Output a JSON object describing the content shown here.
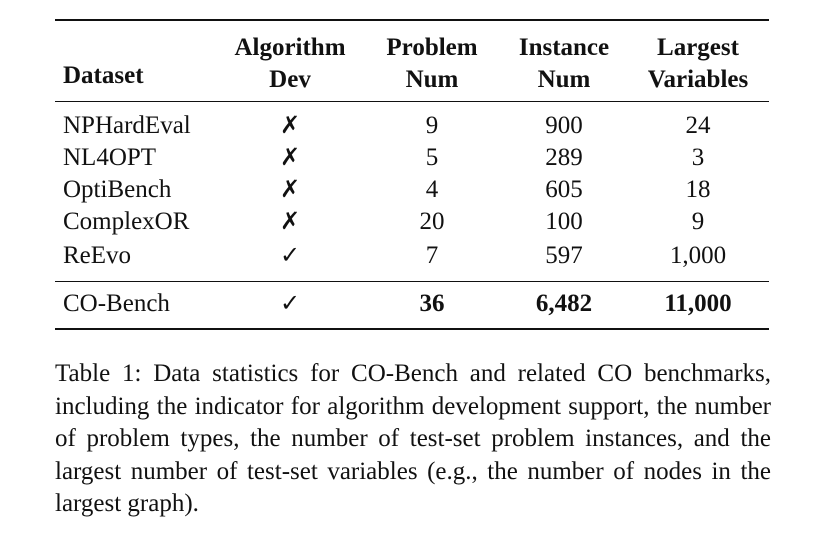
{
  "table": {
    "headers": [
      [
        "Dataset"
      ],
      [
        "Algorithm",
        "Dev"
      ],
      [
        "Problem",
        "Num"
      ],
      [
        "Instance",
        "Num"
      ],
      [
        "Largest",
        "Variables"
      ]
    ],
    "rows": [
      [
        "NPHardEval",
        "✗",
        "9",
        "900",
        "24"
      ],
      [
        "NL4OPT",
        "✗",
        "5",
        "289",
        "3"
      ],
      [
        "OptiBench",
        "✗",
        "4",
        "605",
        "18"
      ],
      [
        "ComplexOR",
        "✗",
        "20",
        "100",
        "9"
      ],
      [
        "ReEvo",
        "✓",
        "7",
        "597",
        "1,000"
      ]
    ],
    "final_row": [
      "CO-Bench",
      "✓",
      "36",
      "6,482",
      "11,000"
    ]
  },
  "caption": "Table 1: Data statistics for CO-Bench and related CO benchmarks, including the indicator for algorithm development support, the number of problem types, the number of test-set problem instances, and the largest number of test-set variables (e.g., the number of nodes in the largest graph)."
}
